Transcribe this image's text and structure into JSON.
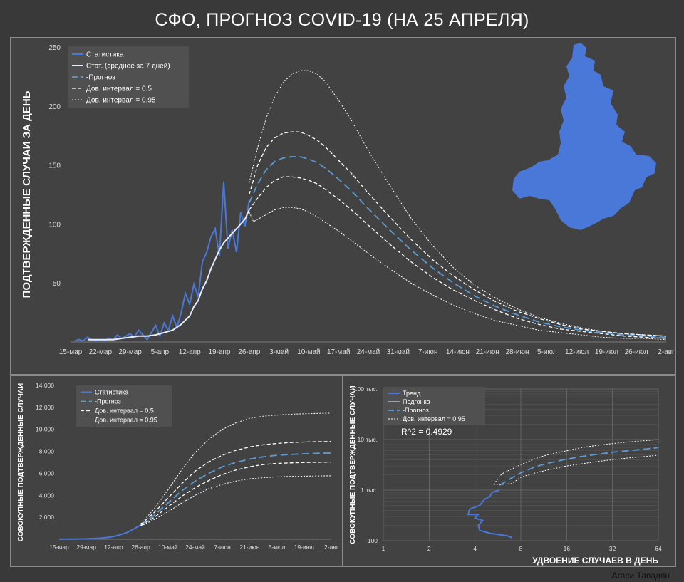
{
  "title": "СФО, ПРОГНОЗ COVID-19 (НА 25 АПРЕЛЯ)",
  "credit": "Агаси Тавадян",
  "colors": {
    "stat": "#4a78d8",
    "smooth": "#e6ecff",
    "forecast": "#5b9bd5",
    "ci": "#ffffff",
    "bg": "#424242",
    "region": "#4a78d8"
  },
  "chart_data": [
    {
      "id": "daily",
      "type": "line",
      "ylabel": "ПОДТВЕРЖДЕННЫЕ СЛУЧАИ ЗА ДЕНЬ",
      "xlabel": "",
      "ylim": [
        0,
        250
      ],
      "yticks": [
        50,
        100,
        150,
        200,
        250
      ],
      "xlim": [
        0,
        140
      ],
      "xticks": [
        {
          "day": 0,
          "label": "15-мар"
        },
        {
          "day": 7,
          "label": "22-мар"
        },
        {
          "day": 14,
          "label": "29-мар"
        },
        {
          "day": 21,
          "label": "5-апр"
        },
        {
          "day": 28,
          "label": "12-апр"
        },
        {
          "day": 35,
          "label": "19-апр"
        },
        {
          "day": 42,
          "label": "26-апр"
        },
        {
          "day": 49,
          "label": "3-май"
        },
        {
          "day": 56,
          "label": "10-май"
        },
        {
          "day": 63,
          "label": "17-май"
        },
        {
          "day": 70,
          "label": "24-май"
        },
        {
          "day": 77,
          "label": "31-май"
        },
        {
          "day": 84,
          "label": "7-июн"
        },
        {
          "day": 91,
          "label": "14-июн"
        },
        {
          "day": 98,
          "label": "21-июн"
        },
        {
          "day": 105,
          "label": "28-июн"
        },
        {
          "day": 112,
          "label": "5-июл"
        },
        {
          "day": 119,
          "label": "12-июл"
        },
        {
          "day": 126,
          "label": "19-июл"
        },
        {
          "day": 133,
          "label": "26-июл"
        },
        {
          "day": 140,
          "label": "2-авг"
        }
      ],
      "legend": [
        "Статистика",
        "Стат. (среднее за 7 дней)",
        "Прогноз",
        "Дов. интервал = 0.5",
        "Дов. интервал = 0.95"
      ],
      "series": [
        {
          "name": "Статистика",
          "x": [
            1,
            2,
            3,
            4,
            5,
            6,
            7,
            8,
            9,
            10,
            11,
            12,
            13,
            14,
            15,
            16,
            17,
            18,
            19,
            20,
            21,
            22,
            23,
            24,
            25,
            26,
            27,
            28,
            29,
            30,
            31,
            32,
            33,
            34,
            35,
            36,
            37,
            38,
            39,
            40,
            41,
            42
          ],
          "y": [
            1,
            2,
            1,
            4,
            2,
            1,
            2,
            1,
            3,
            2,
            6,
            3,
            5,
            7,
            4,
            10,
            6,
            2,
            8,
            14,
            5,
            16,
            10,
            22,
            12,
            25,
            41,
            32,
            49,
            38,
            68,
            76,
            89,
            96,
            73,
            136,
            79,
            95,
            76,
            110,
            98,
            120
          ]
        },
        {
          "name": "Стат. (среднее за 7 дней)",
          "x": [
            4,
            6,
            8,
            10,
            12,
            14,
            16,
            18,
            20,
            22,
            24,
            26,
            28,
            29,
            30,
            31,
            32,
            33,
            34,
            35,
            36,
            37,
            38,
            39,
            40,
            41,
            42
          ],
          "y": [
            2,
            2,
            2,
            2,
            3,
            4,
            5,
            5,
            6,
            8,
            10,
            15,
            22,
            30,
            35,
            45,
            52,
            62,
            70,
            78,
            84,
            88,
            92,
            96,
            100,
            104,
            112
          ]
        },
        {
          "name": "Прогноз",
          "x": [
            42,
            44,
            46,
            48,
            50,
            52,
            54,
            56,
            58,
            60,
            63,
            66,
            70,
            75,
            80,
            85,
            90,
            95,
            100,
            105,
            110,
            115,
            120,
            125,
            130,
            135,
            140
          ],
          "y": [
            118,
            134,
            146,
            153,
            156,
            157,
            157,
            155,
            152,
            147,
            138,
            128,
            113,
            95,
            78,
            63,
            50,
            39,
            30,
            23,
            17,
            13,
            10,
            8,
            6,
            5,
            4
          ]
        },
        {
          "name": "Дов. интервал = 0.5 (верх)",
          "x": [
            42,
            44,
            46,
            48,
            50,
            52,
            54,
            56,
            58,
            60,
            63,
            66,
            70,
            75,
            80,
            85,
            90,
            95,
            100,
            105,
            110,
            115,
            120,
            125,
            130,
            135,
            140
          ],
          "y": [
            125,
            150,
            165,
            173,
            177,
            178,
            178,
            175,
            171,
            165,
            154,
            143,
            126,
            106,
            87,
            70,
            56,
            44,
            34,
            26,
            20,
            15,
            11,
            9,
            7,
            6,
            5
          ]
        },
        {
          "name": "Дов. интервал = 0.5 (низ)",
          "x": [
            42,
            44,
            46,
            48,
            50,
            52,
            54,
            56,
            58,
            60,
            63,
            66,
            70,
            75,
            80,
            85,
            90,
            95,
            100,
            105,
            110,
            115,
            120,
            125,
            130,
            135,
            140
          ],
          "y": [
            112,
            122,
            131,
            137,
            140,
            140,
            139,
            137,
            134,
            129,
            121,
            112,
            99,
            83,
            68,
            55,
            44,
            35,
            27,
            20,
            15,
            11,
            9,
            7,
            5,
            4,
            3
          ]
        },
        {
          "name": "Дов. интервал = 0.95 (верх)",
          "x": [
            42,
            43,
            44,
            46,
            48,
            50,
            52,
            54,
            56,
            58,
            60,
            63,
            66,
            70,
            75,
            80,
            85,
            90,
            95,
            100,
            105,
            110,
            115,
            120,
            125,
            130,
            135,
            140
          ],
          "y": [
            135,
            150,
            165,
            190,
            208,
            220,
            227,
            230,
            230,
            227,
            220,
            205,
            188,
            162,
            133,
            105,
            82,
            63,
            48,
            37,
            28,
            21,
            16,
            12,
            9,
            7,
            6,
            5
          ]
        },
        {
          "name": "Дов. интервал = 0.95 (низ)",
          "x": [
            42,
            43,
            44,
            46,
            48,
            50,
            52,
            54,
            56,
            58,
            60,
            63,
            66,
            70,
            75,
            80,
            85,
            90,
            95,
            100,
            105,
            110,
            115,
            120,
            125,
            130,
            135,
            140
          ],
          "y": [
            110,
            102,
            104,
            108,
            112,
            114,
            114,
            113,
            110,
            106,
            101,
            94,
            86,
            75,
            62,
            50,
            40,
            31,
            24,
            18,
            14,
            10,
            8,
            6,
            4,
            3,
            3,
            2
          ]
        }
      ]
    },
    {
      "id": "cumulative",
      "type": "line",
      "ylabel": "СОВОКУПНЫЕ ПОДТВЕРЖДЕННЫЕ СЛУЧАИ",
      "ylim": [
        0,
        14000
      ],
      "yticks": [
        {
          "v": 2000,
          "label": "2,000"
        },
        {
          "v": 4000,
          "label": "4,000"
        },
        {
          "v": 6000,
          "label": "6,000"
        },
        {
          "v": 8000,
          "label": "8,000"
        },
        {
          "v": 10000,
          "label": "10,000"
        },
        {
          "v": 12000,
          "label": "12,000"
        },
        {
          "v": 14000,
          "label": "14,000"
        }
      ],
      "xlim": [
        0,
        140
      ],
      "xticks": [
        {
          "day": 0,
          "label": "15-мар"
        },
        {
          "day": 14,
          "label": "29-мар"
        },
        {
          "day": 28,
          "label": "12-апр"
        },
        {
          "day": 42,
          "label": "26-апр"
        },
        {
          "day": 56,
          "label": "10-май"
        },
        {
          "day": 70,
          "label": "24-май"
        },
        {
          "day": 84,
          "label": "7-июн"
        },
        {
          "day": 98,
          "label": "21-июн"
        },
        {
          "day": 112,
          "label": "5-июл"
        },
        {
          "day": 126,
          "label": "19-июл"
        },
        {
          "day": 140,
          "label": "2-авг"
        }
      ],
      "legend": [
        "Статистика",
        "Прогноз",
        "Дов. интервал = 0.5",
        "Дов. интервал = 0.95"
      ],
      "series": [
        {
          "name": "Статистика",
          "x": [
            0,
            7,
            14,
            21,
            25,
            28,
            31,
            35,
            38,
            42
          ],
          "y": [
            5,
            15,
            40,
            100,
            160,
            250,
            380,
            620,
            900,
            1300
          ]
        },
        {
          "name": "Прогноз",
          "x": [
            42,
            49,
            56,
            63,
            70,
            77,
            84,
            91,
            98,
            105,
            112,
            119,
            126,
            133,
            140
          ],
          "y": [
            1300,
            2200,
            3300,
            4400,
            5300,
            6000,
            6600,
            7000,
            7300,
            7500,
            7650,
            7720,
            7780,
            7820,
            7850
          ]
        },
        {
          "name": "Дов. интервал = 0.5 (верх)",
          "x": [
            42,
            49,
            56,
            63,
            70,
            77,
            84,
            91,
            98,
            105,
            112,
            119,
            126,
            133,
            140
          ],
          "y": [
            1350,
            2450,
            3750,
            5050,
            6200,
            7050,
            7650,
            8100,
            8400,
            8600,
            8720,
            8800,
            8850,
            8880,
            8900
          ]
        },
        {
          "name": "Дов. интервал = 0.5 (низ)",
          "x": [
            42,
            49,
            56,
            63,
            70,
            77,
            84,
            91,
            98,
            105,
            112,
            119,
            126,
            133,
            140
          ],
          "y": [
            1250,
            2000,
            2950,
            3900,
            4700,
            5350,
            5900,
            6300,
            6600,
            6800,
            6900,
            6950,
            6980,
            7000,
            7020
          ]
        },
        {
          "name": "Дов. интервал = 0.95 (верх)",
          "x": [
            42,
            49,
            56,
            63,
            70,
            77,
            84,
            91,
            98,
            105,
            112,
            119,
            126,
            133,
            140
          ],
          "y": [
            1400,
            2800,
            4500,
            6300,
            7900,
            9100,
            10000,
            10600,
            11000,
            11200,
            11300,
            11380,
            11420,
            11450,
            11480
          ]
        },
        {
          "name": "Дов. интервал = 0.95 (низ)",
          "x": [
            42,
            49,
            56,
            63,
            70,
            77,
            84,
            91,
            98,
            105,
            112,
            119,
            126,
            133,
            140
          ],
          "y": [
            1200,
            1800,
            2500,
            3300,
            4000,
            4600,
            5000,
            5300,
            5500,
            5600,
            5680,
            5720,
            5740,
            5760,
            5780
          ]
        }
      ]
    },
    {
      "id": "doubling",
      "type": "line",
      "xlabel": "УДВОЕНИЕ СЛУЧАЕВ В ДЕНЬ",
      "ylabel": "СОВОКУПНЫЕ ПОДТВЕРЖДЕННЫЕ СЛУЧАИ",
      "xscale": "log2",
      "yscale": "log10",
      "xlim": [
        1,
        64
      ],
      "ylim": [
        100,
        100000
      ],
      "xticks": [
        {
          "v": 1,
          "label": "1"
        },
        {
          "v": 2,
          "label": "2"
        },
        {
          "v": 4,
          "label": "4"
        },
        {
          "v": 8,
          "label": "8"
        },
        {
          "v": 16,
          "label": "16"
        },
        {
          "v": 32,
          "label": "32"
        },
        {
          "v": 64,
          "label": "64"
        }
      ],
      "yticks": [
        {
          "v": 100,
          "label": "100"
        },
        {
          "v": 1000,
          "label": "1 тыс."
        },
        {
          "v": 10000,
          "label": "10 тыс."
        },
        {
          "v": 100000,
          "label": "100 тыс."
        }
      ],
      "annotation": "R^2 = 0.4929",
      "legend": [
        "Тренд",
        "Подгонка",
        "Прогноз",
        "Дов. интервал = 0.95"
      ],
      "series": [
        {
          "name": "Тренд",
          "x": [
            7,
            6.5,
            5,
            4.3,
            4.2,
            4.5,
            4.0,
            4.2,
            3.6,
            3.7,
            4.3,
            4.6,
            5.0,
            5.2,
            5.8
          ],
          "y": [
            115,
            125,
            140,
            160,
            200,
            250,
            280,
            330,
            330,
            420,
            500,
            650,
            750,
            900,
            1000
          ]
        },
        {
          "name": "Прогноз",
          "x": [
            5.8,
            7,
            8,
            10,
            12,
            16,
            20,
            24,
            32,
            40,
            48,
            64
          ],
          "y": [
            1250,
            1750,
            2200,
            2900,
            3400,
            4100,
            4600,
            5000,
            5600,
            6000,
            6300,
            6900
          ]
        },
        {
          "name": "Дов. интервал = 0.95 (верх)",
          "x": [
            5.3,
            6,
            8,
            10,
            12,
            16,
            20,
            24,
            32,
            40,
            48,
            64
          ],
          "y": [
            1300,
            2100,
            3200,
            4200,
            5000,
            6000,
            6900,
            7500,
            8300,
            8900,
            9300,
            10000
          ]
        },
        {
          "name": "Дов. интервал = 0.95 (низ)",
          "x": [
            5.3,
            6,
            7,
            8,
            10,
            12,
            16,
            20,
            24,
            32,
            40,
            48,
            64
          ],
          "y": [
            1300,
            1300,
            1350,
            1800,
            2200,
            2500,
            3000,
            3300,
            3600,
            4000,
            4300,
            4500,
            4900
          ]
        }
      ]
    }
  ]
}
